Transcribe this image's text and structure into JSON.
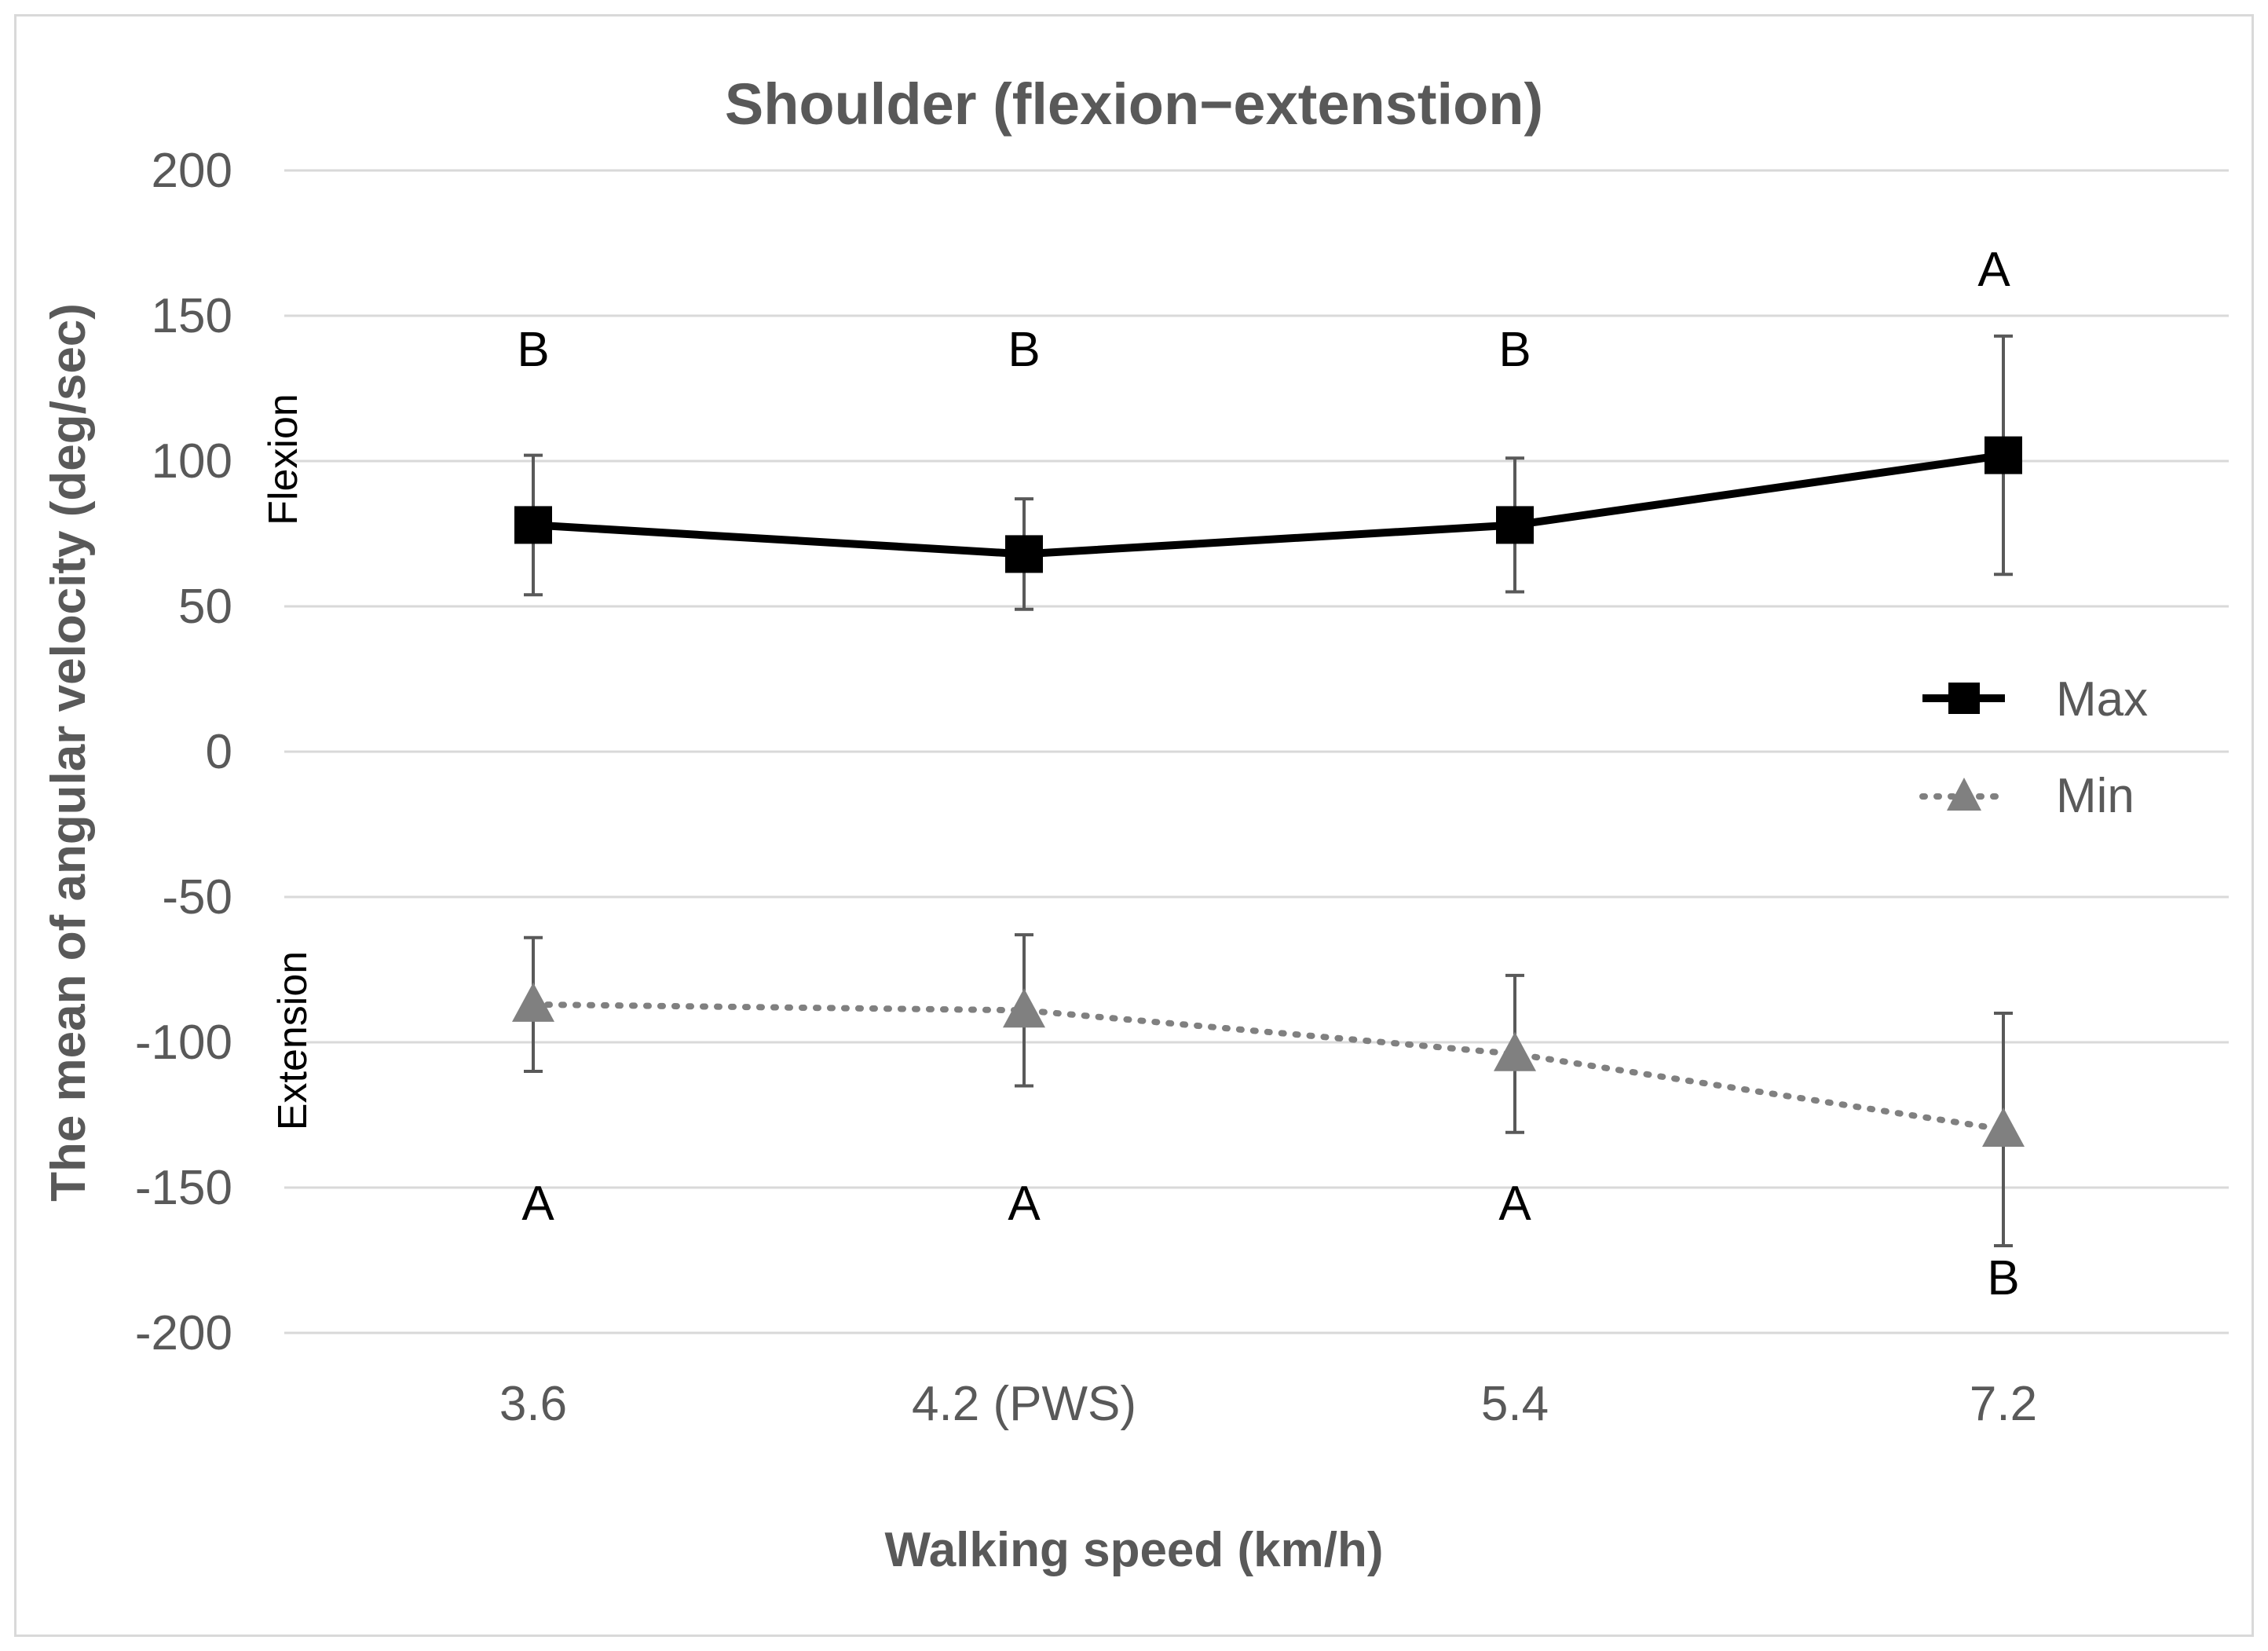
{
  "chart_data": {
    "type": "line",
    "title": "Shoulder (flexion−extenstion)",
    "xlabel": "Walking speed (km/h)",
    "ylabel": "The mean of angular velocity (deg/sec)",
    "categories": [
      "3.6",
      "4.2 (PWS)",
      "5.4",
      "7.2"
    ],
    "ylim": [
      -200,
      200
    ],
    "yticks": [
      200,
      150,
      100,
      50,
      0,
      -50,
      -100,
      -150,
      -200
    ],
    "ytick_labels": [
      "200",
      "150",
      "100",
      "50",
      "0",
      "-50",
      "-100",
      "-150",
      "-200"
    ],
    "grid": true,
    "legend_position": "right",
    "region_labels": {
      "upper": "Flexion",
      "lower": "Extension"
    },
    "series": [
      {
        "name": "Max",
        "marker": "square",
        "line_style": "solid",
        "color": "#000000",
        "values": [
          78,
          68,
          78,
          102
        ],
        "error": [
          24,
          19,
          23,
          41
        ],
        "significance": [
          "B",
          "B",
          "B",
          "A"
        ]
      },
      {
        "name": "Min",
        "marker": "triangle",
        "line_style": "dotted",
        "color": "#808080",
        "values": [
          -87,
          -89,
          -104,
          -130
        ],
        "error": [
          23,
          26,
          27,
          40
        ],
        "significance": [
          "A",
          "A",
          "A",
          "B"
        ]
      }
    ]
  }
}
